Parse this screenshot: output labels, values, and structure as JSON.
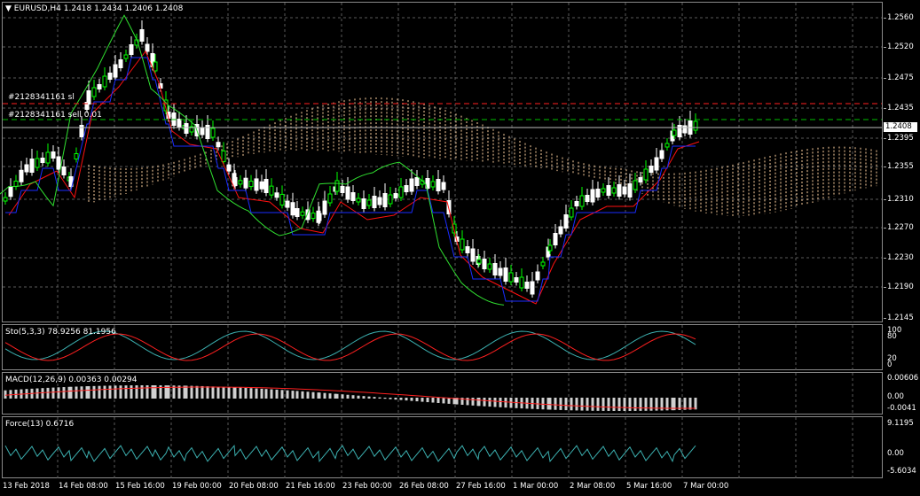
{
  "main": {
    "symbol_line": "EURUSD,H4  1.2418 1.2434 1.2406 1.2408",
    "order_sl": "#2128341161 sl",
    "order_sell": "#2128341161 sell 0.01",
    "current_price": "1.2408",
    "yticks": [
      "1.2560",
      "1.2520",
      "1.2475",
      "1.2435",
      "1.2395",
      "1.2355",
      "1.2310",
      "1.2270",
      "1.2230",
      "1.2190",
      "1.2145"
    ]
  },
  "stoch": {
    "label": "Sto(5,3,3) 78.9256 81.1956",
    "ticks": [
      "100",
      "80",
      "20",
      "0"
    ]
  },
  "macd": {
    "label": "MACD(12,26,9) 0.00363 0.00294",
    "ticks": [
      "0.00606",
      "0.00",
      "-0.0041"
    ]
  },
  "force": {
    "label": "Force(13) 0.6716",
    "ticks": [
      "9.1195",
      "0.00",
      "-5.6034"
    ]
  },
  "xaxis": [
    "13 Feb 2018",
    "14 Feb 08:00",
    "15 Feb 16:00",
    "19 Feb 00:00",
    "20 Feb 08:00",
    "21 Feb 16:00",
    "23 Feb 00:00",
    "26 Feb 08:00",
    "27 Feb 16:00",
    "1 Mar 00:00",
    "2 Mar 08:00",
    "5 Mar 16:00",
    "7 Mar 00:00"
  ],
  "colors": {
    "bull": "#00ff00",
    "bear": "#ffffff",
    "grid": "#5a5a5a",
    "sl": "#ff2020",
    "order": "#00c000",
    "kijun": "#1a2cff",
    "tenkan": "#ff1010",
    "chikou": "#30e030",
    "cloud": "#ffd2a0",
    "stoch_main": "#3cb0b0",
    "stoch_signal": "#ff2020",
    "macd_signal": "#ff2020",
    "force": "#3cb0b0"
  }
}
